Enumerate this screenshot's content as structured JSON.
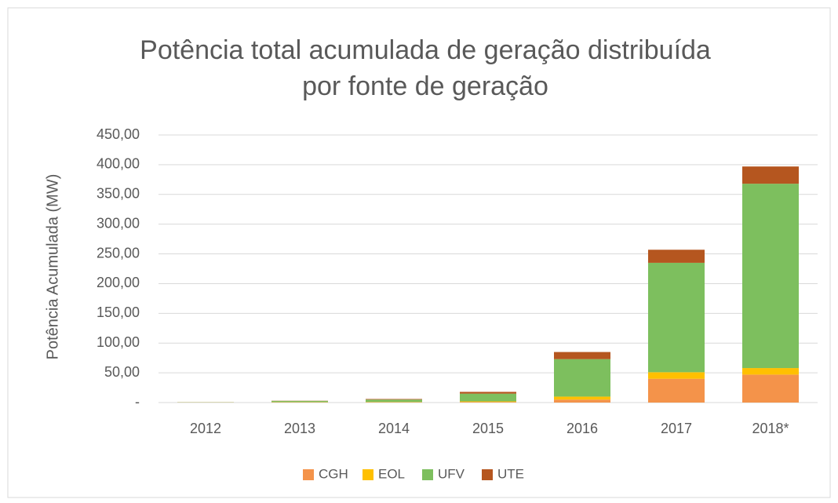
{
  "chart_data": {
    "type": "stacked_bar",
    "title": [
      "Potência total acumulada de geração distribuída",
      "por fonte de geração"
    ],
    "y_label": "Potência Acumulada (MW)",
    "categories": [
      "2012",
      "2013",
      "2014",
      "2015",
      "2016",
      "2017",
      "2018*"
    ],
    "series": [
      {
        "name": "CGH",
        "color": "#f4934a",
        "values": [
          0.2,
          0.5,
          0.5,
          1,
          5,
          40,
          47
        ]
      },
      {
        "name": "EOL",
        "color": "#ffc000",
        "values": [
          0.1,
          0.3,
          0.5,
          1,
          5,
          11,
          11
        ]
      },
      {
        "name": "UFV",
        "color": "#7dbf5e",
        "values": [
          0.3,
          2,
          4,
          13,
          63,
          184,
          310
        ]
      },
      {
        "name": "UTE",
        "color": "#b5561f",
        "values": [
          0.1,
          0.3,
          1,
          3,
          12,
          22,
          29
        ]
      }
    ],
    "ylim": [
      0,
      450
    ],
    "yticks": [
      {
        "value": 0,
        "label": "-"
      },
      {
        "value": 50,
        "label": "50,00"
      },
      {
        "value": 100,
        "label": "100,00"
      },
      {
        "value": 150,
        "label": "150,00"
      },
      {
        "value": 200,
        "label": "200,00"
      },
      {
        "value": 250,
        "label": "250,00"
      },
      {
        "value": 300,
        "label": "300,00"
      },
      {
        "value": 350,
        "label": "350,00"
      },
      {
        "value": 400,
        "label": "400,00"
      },
      {
        "value": 450,
        "label": "450,00"
      }
    ],
    "grid": true,
    "legend": "bottom"
  }
}
